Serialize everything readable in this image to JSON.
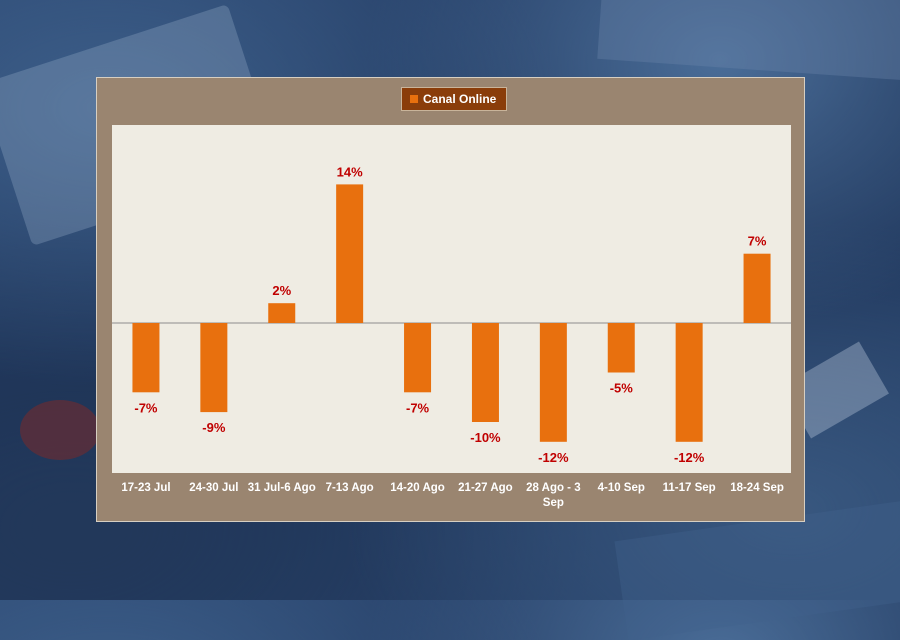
{
  "chart_data": {
    "type": "bar",
    "categories": [
      "17-23 Jul",
      "24-30 Jul",
      "31 Jul-6 Ago",
      "7-13 Ago",
      "14-20 Ago",
      "21-27 Ago",
      "28 Ago - 3 Sep",
      "4-10 Sep",
      "11-17 Sep",
      "18-24 Sep"
    ],
    "series": [
      {
        "name": "Canal Online",
        "values": [
          -7,
          -9,
          2,
          14,
          -7,
          -10,
          -12,
          -5,
          -12,
          7
        ],
        "data_labels": [
          "-7%",
          "-9%",
          "2%",
          "14%",
          "-7%",
          "-10%",
          "-12%",
          "-5%",
          "-12%",
          "7%"
        ]
      }
    ],
    "ylim": [
      -15,
      20
    ],
    "title": "",
    "xlabel": "",
    "ylabel": "",
    "unit": "%",
    "grid": false,
    "legend_position": "top-center",
    "colors": {
      "bar": "#e8700e",
      "data_label": "#c00000",
      "axis": "#8c8c8c",
      "plot_bg": "#efece3",
      "panel_bg": "#9a8570",
      "legend_bg": "#8a3d0a"
    }
  }
}
